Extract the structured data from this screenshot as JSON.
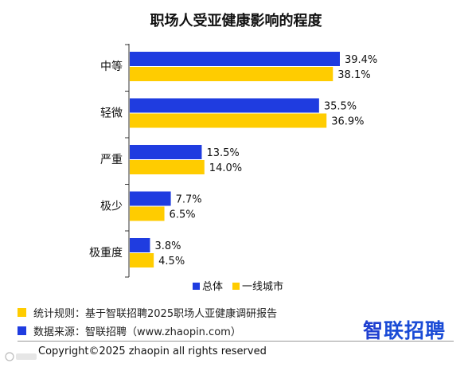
{
  "title": "职场人受亚健康影响的程度",
  "colors": {
    "series1": "#1f3ce0",
    "series2": "#ffcc00",
    "axis": "#333333"
  },
  "chart_data": {
    "type": "bar",
    "orientation": "horizontal",
    "categories": [
      "中等",
      "轻微",
      "严重",
      "极少",
      "极重度"
    ],
    "series": [
      {
        "name": "总体",
        "values": [
          39.4,
          35.5,
          13.5,
          7.7,
          3.8
        ],
        "labels": [
          "39.4%",
          "35.5%",
          "13.5%",
          "7.7%",
          "3.8%"
        ],
        "color": "#1f3ce0"
      },
      {
        "name": "一线城市",
        "values": [
          38.1,
          36.9,
          14.0,
          6.5,
          4.5
        ],
        "labels": [
          "38.1%",
          "36.9%",
          "14.0%",
          "6.5%",
          "4.5%"
        ],
        "color": "#ffcc00"
      }
    ],
    "xlim": [
      0,
      40
    ],
    "unit": "%",
    "grid": false,
    "legend_position": "bottom"
  },
  "notes": {
    "rule": {
      "text": "统计规则：基于智联招聘2025职场人亚健康调研报告",
      "color": "#ffcc00"
    },
    "source": {
      "text": "数据来源：智联招聘（www.zhaopin.com）",
      "color": "#1f3ce0"
    }
  },
  "logo": {
    "mark": "智",
    "text": "联招聘"
  },
  "copyright": "Copyright©2025 zhaopin all rights reserved"
}
